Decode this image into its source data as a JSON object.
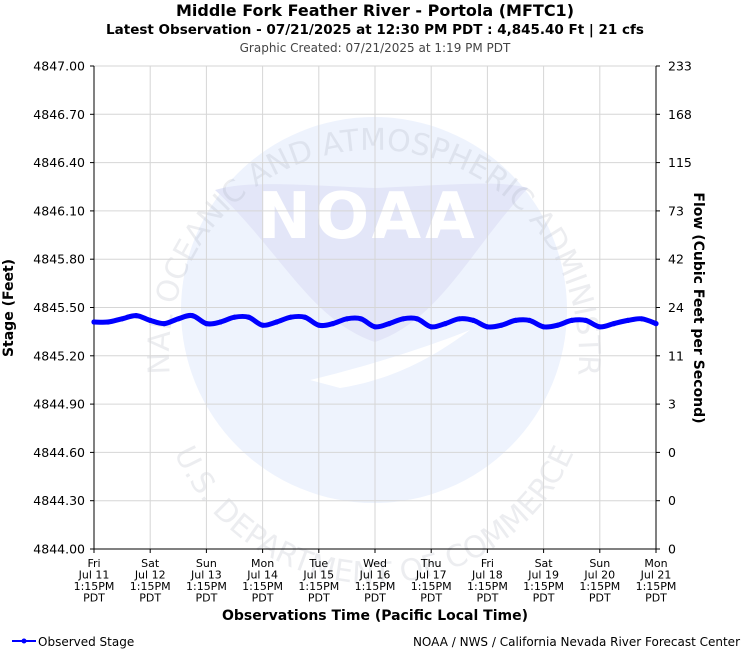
{
  "chart_data": {
    "type": "line",
    "title": "Middle Fork Feather River - Portola (MFTC1)",
    "subtitle": "Latest Observation - 07/21/2025 at 12:30 PM PDT : 4,845.40 Ft | 21 cfs",
    "created": "Graphic Created: 07/21/2025 at 1:19 PM PDT",
    "ylabel": "Stage (Feet)",
    "y2label": "Flow (Cubic Feet per Second)",
    "xlabel": "Observations Time (Pacific Local Time)",
    "ylim": [
      4844.0,
      4847.0
    ],
    "y_ticks": [
      "4847.00",
      "4846.70",
      "4846.40",
      "4846.10",
      "4845.80",
      "4845.50",
      "4845.20",
      "4844.90",
      "4844.60",
      "4844.30",
      "4844.00"
    ],
    "y2_ticks": [
      "233",
      "168",
      "115",
      "73",
      "42",
      "24",
      "11",
      "3",
      "0",
      "0",
      "0"
    ],
    "x_ticks": [
      [
        "Fri",
        "Jul 11",
        "1:15PM",
        "PDT"
      ],
      [
        "Sat",
        "Jul 12",
        "1:15PM",
        "PDT"
      ],
      [
        "Sun",
        "Jul 13",
        "1:15PM",
        "PDT"
      ],
      [
        "Mon",
        "Jul 14",
        "1:15PM",
        "PDT"
      ],
      [
        "Tue",
        "Jul 15",
        "1:15PM",
        "PDT"
      ],
      [
        "Wed",
        "Jul 16",
        "1:15PM",
        "PDT"
      ],
      [
        "Thu",
        "Jul 17",
        "1:15PM",
        "PDT"
      ],
      [
        "Fri",
        "Jul 18",
        "1:15PM",
        "PDT"
      ],
      [
        "Sat",
        "Jul 19",
        "1:15PM",
        "PDT"
      ],
      [
        "Sun",
        "Jul 20",
        "1:15PM",
        "PDT"
      ],
      [
        "Mon",
        "Jul 21",
        "1:15PM",
        "PDT"
      ]
    ],
    "series": [
      {
        "name": "Observed Stage",
        "color": "#0000ff",
        "x": [
          "2025-07-11 13:15",
          "2025-07-11 19:15",
          "2025-07-12 01:15",
          "2025-07-12 07:15",
          "2025-07-12 13:15",
          "2025-07-12 19:15",
          "2025-07-13 01:15",
          "2025-07-13 07:15",
          "2025-07-13 13:15",
          "2025-07-13 19:15",
          "2025-07-14 01:15",
          "2025-07-14 07:15",
          "2025-07-14 13:15",
          "2025-07-14 19:15",
          "2025-07-15 01:15",
          "2025-07-15 07:15",
          "2025-07-15 13:15",
          "2025-07-15 19:15",
          "2025-07-16 01:15",
          "2025-07-16 07:15",
          "2025-07-16 13:15",
          "2025-07-16 19:15",
          "2025-07-17 01:15",
          "2025-07-17 07:15",
          "2025-07-17 13:15",
          "2025-07-17 19:15",
          "2025-07-18 01:15",
          "2025-07-18 07:15",
          "2025-07-18 13:15",
          "2025-07-18 19:15",
          "2025-07-19 01:15",
          "2025-07-19 07:15",
          "2025-07-19 13:15",
          "2025-07-19 19:15",
          "2025-07-20 01:15",
          "2025-07-20 07:15",
          "2025-07-20 13:15",
          "2025-07-20 19:15",
          "2025-07-21 01:15",
          "2025-07-21 07:15",
          "2025-07-21 13:15"
        ],
        "values": [
          4845.41,
          4845.41,
          4845.43,
          4845.45,
          4845.42,
          4845.4,
          4845.43,
          4845.45,
          4845.4,
          4845.41,
          4845.44,
          4845.44,
          4845.39,
          4845.41,
          4845.44,
          4845.44,
          4845.39,
          4845.4,
          4845.43,
          4845.43,
          4845.38,
          4845.4,
          4845.43,
          4845.43,
          4845.38,
          4845.4,
          4845.43,
          4845.42,
          4845.38,
          4845.39,
          4845.42,
          4845.42,
          4845.38,
          4845.39,
          4845.42,
          4845.42,
          4845.38,
          4845.4,
          4845.42,
          4845.43,
          4845.4
        ]
      }
    ],
    "legend": "bottom-left",
    "grid": true
  },
  "watermark": {
    "logo_text": "NOAA",
    "top_text": "NATIONAL OCEANIC AND ATMOSPHERIC ADMINISTRATION",
    "bottom_text": "U.S. DEPARTMENT OF COMMERCE"
  },
  "footer": {
    "legend_label": "Observed Stage",
    "credit": "NOAA / NWS / California Nevada River Forecast Center"
  }
}
